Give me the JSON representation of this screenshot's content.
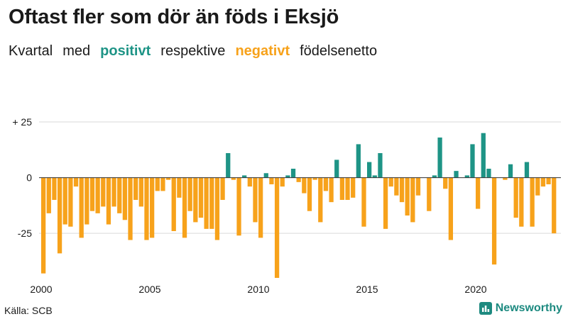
{
  "title": "Oftast fler som dör än föds i Eksjö",
  "subtitle": {
    "part1": "Kvartal",
    "part2": "med",
    "positive_word": "positivt",
    "part3": "respektive",
    "negative_word": "negativt",
    "part4": "födelsenetto"
  },
  "colors": {
    "positive": "#1e9486",
    "negative": "#f7a21b",
    "grid": "#d9d9d9",
    "text": "#1a1a1a"
  },
  "source": "Källa: SCB",
  "brand": {
    "name": "Newsworthy",
    "icon": "bar-chart-icon"
  },
  "chart_data": {
    "type": "bar",
    "title": "Oftast fler som dör än föds i Eksjö",
    "xlabel": "",
    "ylabel": "",
    "ylim": [
      -45,
      25
    ],
    "y_ticks": [
      {
        "value": 25,
        "label": "+ 25"
      },
      {
        "value": 0,
        "label": "0"
      },
      {
        "value": -25,
        "label": "-25"
      }
    ],
    "x_tick_labels": [
      "2000",
      "2005",
      "2010",
      "2015",
      "2020"
    ],
    "start_year": 2000,
    "values": [
      -43,
      -16,
      -10,
      -34,
      -21,
      -22,
      -4,
      -27,
      -21,
      -15,
      -16,
      -13,
      -21,
      -13,
      -16,
      -19,
      -28,
      -10,
      -13,
      -28,
      -27,
      -6,
      -6,
      -1,
      -24,
      -9,
      -27,
      -15,
      -20,
      -18,
      -23,
      -23,
      -28,
      -10,
      11,
      -1,
      -26,
      1,
      -4,
      -20,
      -27,
      2,
      -3,
      -45,
      -4,
      1,
      4,
      -2,
      -7,
      -15,
      -1,
      -20,
      -6,
      -11,
      8,
      -10,
      -10,
      -9,
      15,
      -22,
      7,
      1,
      11,
      -23,
      -4,
      -8,
      -11,
      -17,
      -20,
      -8,
      0,
      -15,
      1,
      18,
      -5,
      -28,
      3,
      0,
      1,
      15,
      -14,
      20,
      4,
      -39,
      0,
      -1,
      6,
      -18,
      -22,
      7,
      -22,
      -8,
      -4,
      -3,
      -25
    ]
  }
}
